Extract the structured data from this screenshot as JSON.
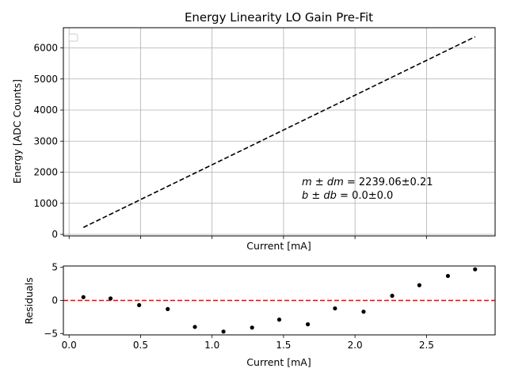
{
  "chart_data": [
    {
      "type": "line",
      "title": "Energy Linearity LO Gain Pre-Fit",
      "xlabel": "Current [mA]",
      "ylabel": "Energy [ADC Counts]",
      "xlim": [
        -0.04,
        2.98
      ],
      "ylim": [
        -50,
        6650
      ],
      "x_ticks": [
        0.0,
        0.5,
        1.0,
        1.5,
        2.0,
        2.5
      ],
      "y_ticks": [
        0,
        1000,
        2000,
        3000,
        4000,
        5000,
        6000
      ],
      "y_tick_labels": [
        "0",
        "1000",
        "2000",
        "3000",
        "4000",
        "5000",
        "6000"
      ],
      "grid": true,
      "legend": "top-left (empty)",
      "series": [
        {
          "style": "dashed",
          "color": "#000000",
          "x": [
            0.1,
            2.84
          ],
          "y": [
            223.9,
            6358.9
          ]
        }
      ],
      "annotation_lines": [
        {
          "label": "m ± dm",
          "value": " = 2239.06±0.21"
        },
        {
          "label": "b ± db",
          "value": " = 0.0±0.0"
        }
      ]
    },
    {
      "type": "scatter",
      "title": "",
      "xlabel": "Current [mA]",
      "ylabel": "Residuals",
      "xlim": [
        -0.04,
        2.98
      ],
      "ylim": [
        -5.2,
        5.2
      ],
      "x_ticks": [
        0.0,
        0.5,
        1.0,
        1.5,
        2.0,
        2.5
      ],
      "x_tick_labels": [
        "0.0",
        "0.5",
        "1.0",
        "1.5",
        "2.0",
        "2.5"
      ],
      "y_ticks": [
        -5,
        0,
        5
      ],
      "y_tick_labels": [
        "−5",
        "0",
        "5"
      ],
      "grid": false,
      "reference_line": {
        "y": 0,
        "style": "dashed",
        "color": "#ff0000"
      },
      "series": [
        {
          "color": "#000000",
          "x": [
            0.1,
            0.29,
            0.49,
            0.69,
            0.88,
            1.08,
            1.28,
            1.47,
            1.67,
            1.86,
            2.06,
            2.26,
            2.45,
            2.65,
            2.84
          ],
          "y": [
            0.5,
            0.3,
            -0.7,
            -1.3,
            -4.0,
            -4.7,
            -4.1,
            -2.9,
            -3.6,
            -1.2,
            -1.7,
            0.7,
            2.3,
            3.7,
            4.7
          ]
        }
      ]
    }
  ]
}
